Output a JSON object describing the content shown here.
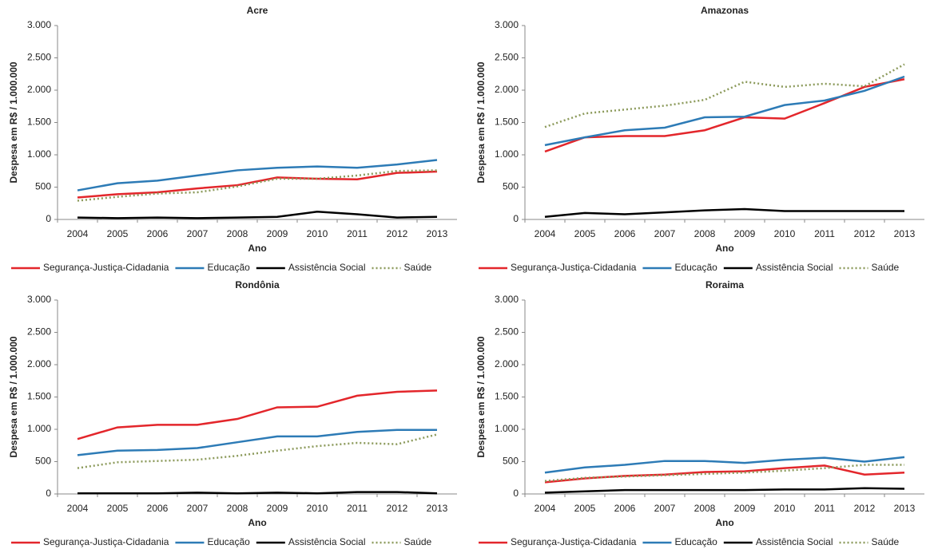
{
  "chart_data": [
    {
      "type": "line",
      "title": "Acre",
      "x_label": "Ano",
      "y_label": "Despesa em R$ / 1.000.000",
      "categories": [
        "2004",
        "2005",
        "2006",
        "2007",
        "2008",
        "2009",
        "2010",
        "2011",
        "2012",
        "2013"
      ],
      "ylim": [
        0,
        3000
      ],
      "yticks": [
        0,
        500,
        {
          "value": 1000,
          "label": "1.000"
        },
        {
          "value": 1500,
          "label": "1.500"
        },
        {
          "value": 2000,
          "label": "2.000"
        },
        {
          "value": 2500,
          "label": "2.500"
        },
        {
          "value": 3000,
          "label": "3.000"
        }
      ],
      "series": [
        {
          "name": "Segurança-Justiça-Cidadania",
          "color": "#e3262b",
          "values": [
            340,
            390,
            420,
            480,
            530,
            650,
            630,
            620,
            720,
            740
          ]
        },
        {
          "name": "Educação",
          "color": "#2d7bb6",
          "values": [
            450,
            560,
            600,
            680,
            760,
            800,
            820,
            800,
            850,
            920
          ]
        },
        {
          "name": "Assistência Social",
          "color": "#000000",
          "values": [
            30,
            20,
            30,
            20,
            30,
            40,
            120,
            80,
            30,
            40
          ]
        },
        {
          "name": "Saúde",
          "color": "#8c9a5b",
          "dashed": true,
          "values": [
            290,
            350,
            400,
            420,
            510,
            630,
            630,
            680,
            750,
            760
          ]
        }
      ]
    },
    {
      "type": "line",
      "title": "Amazonas",
      "x_label": "Ano",
      "y_label": "Despesa em R$ / 1.000.000",
      "categories": [
        "2004",
        "2005",
        "2006",
        "2007",
        "2008",
        "2009",
        "2010",
        "2011",
        "2012",
        "2013"
      ],
      "ylim": [
        0,
        3000
      ],
      "yticks": [
        0,
        500,
        {
          "value": 1000,
          "label": "1.000"
        },
        {
          "value": 1500,
          "label": "1.500"
        },
        {
          "value": 2000,
          "label": "2.000"
        },
        {
          "value": 2500,
          "label": "2.500"
        },
        {
          "value": 3000,
          "label": "3.000"
        }
      ],
      "series": [
        {
          "name": "Segurança-Justiça-Cidadania",
          "color": "#e3262b",
          "values": [
            1050,
            1270,
            1290,
            1290,
            1380,
            1580,
            1560,
            1800,
            2050,
            2170
          ]
        },
        {
          "name": "Educação",
          "color": "#2d7bb6",
          "values": [
            1150,
            1270,
            1380,
            1420,
            1580,
            1590,
            1770,
            1840,
            1990,
            2210
          ]
        },
        {
          "name": "Assistência Social",
          "color": "#000000",
          "values": [
            40,
            100,
            80,
            110,
            140,
            160,
            130,
            130,
            130,
            130
          ]
        },
        {
          "name": "Saúde",
          "color": "#8c9a5b",
          "dashed": true,
          "values": [
            1430,
            1640,
            1700,
            1760,
            1850,
            2130,
            2050,
            2100,
            2060,
            2400
          ]
        }
      ]
    },
    {
      "type": "line",
      "title": "Rondônia",
      "x_label": "Ano",
      "y_label": "Despesa em R$ / 1.000.000",
      "categories": [
        "2004",
        "2005",
        "2006",
        "2007",
        "2008",
        "2009",
        "2010",
        "2011",
        "2012",
        "2013"
      ],
      "ylim": [
        0,
        3000
      ],
      "yticks": [
        0,
        500,
        {
          "value": 1000,
          "label": "1.000"
        },
        {
          "value": 1500,
          "label": "1.500"
        },
        {
          "value": 2000,
          "label": "2.000"
        },
        {
          "value": 2500,
          "label": "2.500"
        },
        {
          "value": 3000,
          "label": "3.000"
        }
      ],
      "series": [
        {
          "name": "Segurança-Justiça-Cidadania",
          "color": "#e3262b",
          "values": [
            850,
            1030,
            1070,
            1070,
            1160,
            1340,
            1350,
            1520,
            1580,
            1600
          ]
        },
        {
          "name": "Educação",
          "color": "#2d7bb6",
          "values": [
            600,
            670,
            680,
            710,
            800,
            890,
            890,
            960,
            990,
            990
          ]
        },
        {
          "name": "Assistência Social",
          "color": "#000000",
          "values": [
            10,
            10,
            10,
            20,
            10,
            20,
            10,
            30,
            30,
            10
          ]
        },
        {
          "name": "Saúde",
          "color": "#8c9a5b",
          "dashed": true,
          "values": [
            400,
            490,
            510,
            530,
            590,
            670,
            740,
            790,
            770,
            920
          ]
        }
      ]
    },
    {
      "type": "line",
      "title": "Roraima",
      "x_label": "Ano",
      "y_label": "Despesa em R$ / 1.000.000",
      "categories": [
        "2004",
        "2005",
        "2006",
        "2007",
        "2008",
        "2009",
        "2010",
        "2011",
        "2012",
        "2013"
      ],
      "ylim": [
        0,
        3000
      ],
      "yticks": [
        0,
        500,
        {
          "value": 1000,
          "label": "1.000"
        },
        {
          "value": 1500,
          "label": "1.500"
        },
        {
          "value": 2000,
          "label": "2.000"
        },
        {
          "value": 2500,
          "label": "2.500"
        },
        {
          "value": 3000,
          "label": "3.000"
        }
      ],
      "series": [
        {
          "name": "Segurança-Justiça-Cidadania",
          "color": "#e3262b",
          "values": [
            180,
            240,
            280,
            300,
            340,
            350,
            400,
            440,
            300,
            330
          ]
        },
        {
          "name": "Educação",
          "color": "#2d7bb6",
          "values": [
            330,
            410,
            450,
            510,
            510,
            480,
            530,
            560,
            500,
            570
          ]
        },
        {
          "name": "Assistência Social",
          "color": "#000000",
          "values": [
            20,
            40,
            60,
            60,
            60,
            60,
            70,
            70,
            90,
            80
          ]
        },
        {
          "name": "Saúde",
          "color": "#8c9a5b",
          "dashed": true,
          "values": [
            200,
            250,
            270,
            290,
            310,
            330,
            360,
            400,
            450,
            450
          ]
        }
      ]
    }
  ]
}
